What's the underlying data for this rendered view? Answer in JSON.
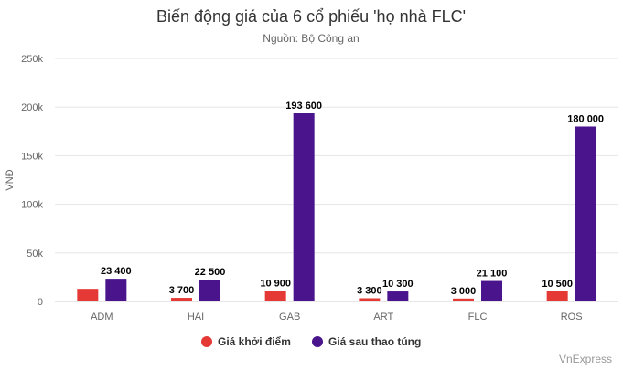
{
  "chart_data": {
    "type": "bar",
    "title": "Biến động giá của 6 cổ phiếu 'họ nhà FLC'",
    "subtitle": "Nguồn: Bộ Công an",
    "ylabel": "VNĐ",
    "xlabel": "",
    "categories": [
      "ADM",
      "HAI",
      "GAB",
      "ART",
      "FLC",
      "ROS"
    ],
    "ylim": [
      0,
      250000
    ],
    "yticks": [
      0,
      50000,
      100000,
      150000,
      200000,
      250000
    ],
    "ytick_labels": [
      "0",
      "50k",
      "100k",
      "150k",
      "200k",
      "250k"
    ],
    "grid": true,
    "legend_position": "bottom-center",
    "series": [
      {
        "name": "Giá khởi điểm",
        "color": "#e53935",
        "values": [
          13000,
          3700,
          10900,
          3300,
          3000,
          10500
        ],
        "labels": [
          "",
          "3 700",
          "10 900",
          "3 300",
          "3 000",
          "10 500"
        ]
      },
      {
        "name": "Giá sau thao túng",
        "color": "#4a148c",
        "values": [
          23400,
          22500,
          193600,
          10300,
          21100,
          180000
        ],
        "labels": [
          "23 400",
          "22 500",
          "193 600",
          "10 300",
          "21 100",
          "180 000"
        ]
      }
    ],
    "credit": "VnExpress"
  }
}
